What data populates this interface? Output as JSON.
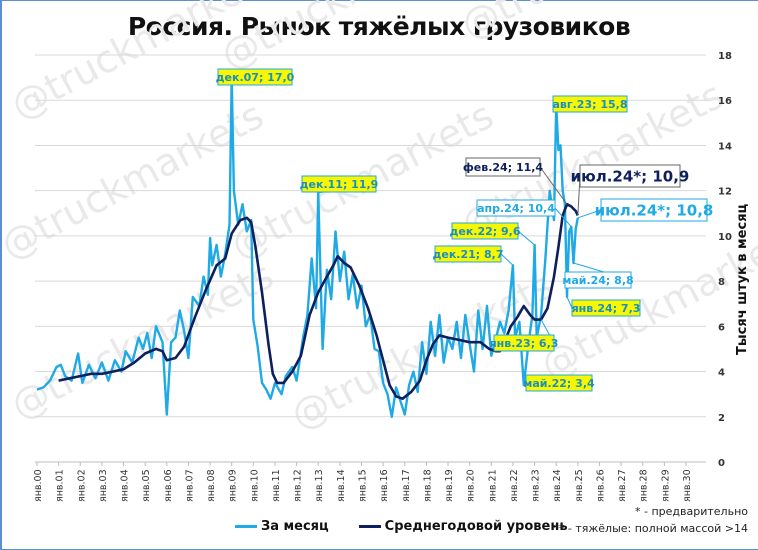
{
  "title": "Россия. Рынок тяжёлых грузовиков",
  "y_axis_label": "Тысяч штук в месяц",
  "legend": {
    "monthly": {
      "label": "За месяц",
      "color": "#1fa9e5"
    },
    "annual_avg": {
      "label": "Среднегодовой уровень",
      "color": "#0d1f5c"
    }
  },
  "notes": {
    "preliminary": "* - предварительно",
    "heavy_def": "** - тяжёлые: полной массой >14"
  },
  "watermark": "@truckmarkets",
  "chart_data": {
    "type": "line",
    "title": "Россия. Рынок тяжёлых грузовиков",
    "xlabel": "",
    "ylabel": "Тысяч штук в месяц",
    "ylim": [
      0,
      18
    ],
    "yticks": [
      0,
      2,
      4,
      6,
      8,
      10,
      12,
      14,
      16,
      18
    ],
    "y_axis_position": "right",
    "grid": "horizontal",
    "legend_position": "bottom",
    "x_tick_labels": [
      "янв.00",
      "янв.01",
      "янв.02",
      "янв.03",
      "янв.04",
      "янв.05",
      "янв.06",
      "янв.07",
      "янв.08",
      "янв.09",
      "янв.10",
      "янв.11",
      "янв.12",
      "янв.13",
      "янв.14",
      "янв.15",
      "янв.16",
      "янв.17",
      "янв.18",
      "янв.19",
      "янв.20",
      "янв.21",
      "янв.22",
      "янв.23",
      "янв.24",
      "янв.25",
      "янв.26",
      "янв.27",
      "янв.28",
      "янв.29",
      "янв.30"
    ],
    "x_year_range": [
      2000,
      2030
    ],
    "series": [
      {
        "name": "За месяц",
        "color": "#1fa9e5",
        "points": [
          [
            2000.0,
            3.2
          ],
          [
            2000.3,
            3.3
          ],
          [
            2000.6,
            3.6
          ],
          [
            2000.9,
            4.2
          ],
          [
            2001.1,
            4.3
          ],
          [
            2001.3,
            3.8
          ],
          [
            2001.6,
            3.6
          ],
          [
            2001.9,
            4.8
          ],
          [
            2002.1,
            3.5
          ],
          [
            2002.4,
            4.3
          ],
          [
            2002.7,
            3.7
          ],
          [
            2003.0,
            4.4
          ],
          [
            2003.3,
            3.6
          ],
          [
            2003.6,
            4.5
          ],
          [
            2003.9,
            4.0
          ],
          [
            2004.1,
            4.9
          ],
          [
            2004.4,
            4.4
          ],
          [
            2004.7,
            5.5
          ],
          [
            2004.9,
            5.0
          ],
          [
            2005.1,
            5.7
          ],
          [
            2005.3,
            4.6
          ],
          [
            2005.5,
            6.0
          ],
          [
            2005.8,
            5.3
          ],
          [
            2006.0,
            2.1
          ],
          [
            2006.2,
            5.3
          ],
          [
            2006.4,
            5.5
          ],
          [
            2006.6,
            6.7
          ],
          [
            2006.8,
            5.8
          ],
          [
            2007.0,
            4.6
          ],
          [
            2007.2,
            7.3
          ],
          [
            2007.5,
            6.9
          ],
          [
            2007.7,
            8.2
          ],
          [
            2007.9,
            7.4
          ],
          [
            2008.0,
            9.9
          ],
          [
            2008.1,
            8.7
          ],
          [
            2008.3,
            9.6
          ],
          [
            2008.5,
            8.2
          ],
          [
            2008.7,
            9.2
          ],
          [
            2008.9,
            10.5
          ],
          [
            2009.0,
            17.0
          ],
          [
            2009.1,
            12.0
          ],
          [
            2009.3,
            10.5
          ],
          [
            2009.5,
            11.4
          ],
          [
            2009.7,
            10.2
          ],
          [
            2009.9,
            10.7
          ],
          [
            2010.0,
            6.3
          ],
          [
            2010.2,
            5.1
          ],
          [
            2010.4,
            3.5
          ],
          [
            2010.6,
            3.2
          ],
          [
            2010.8,
            2.8
          ],
          [
            2011.0,
            3.5
          ],
          [
            2011.3,
            3.0
          ],
          [
            2011.5,
            3.8
          ],
          [
            2011.8,
            4.2
          ],
          [
            2012.0,
            3.6
          ],
          [
            2012.3,
            5.5
          ],
          [
            2012.5,
            6.5
          ],
          [
            2012.7,
            9.0
          ],
          [
            2012.9,
            6.8
          ],
          [
            2013.0,
            11.9
          ],
          [
            2013.2,
            5.0
          ],
          [
            2013.4,
            8.5
          ],
          [
            2013.6,
            7.2
          ],
          [
            2013.8,
            10.2
          ],
          [
            2014.0,
            8.0
          ],
          [
            2014.2,
            9.3
          ],
          [
            2014.4,
            7.2
          ],
          [
            2014.6,
            8.3
          ],
          [
            2014.8,
            6.8
          ],
          [
            2015.0,
            7.8
          ],
          [
            2015.2,
            6.0
          ],
          [
            2015.4,
            6.5
          ],
          [
            2015.6,
            5.0
          ],
          [
            2015.8,
            4.9
          ],
          [
            2016.0,
            3.5
          ],
          [
            2016.2,
            3.0
          ],
          [
            2016.4,
            2.0
          ],
          [
            2016.6,
            3.3
          ],
          [
            2016.8,
            2.7
          ],
          [
            2017.0,
            2.1
          ],
          [
            2017.2,
            3.4
          ],
          [
            2017.4,
            4.0
          ],
          [
            2017.6,
            3.1
          ],
          [
            2017.8,
            5.3
          ],
          [
            2018.0,
            3.9
          ],
          [
            2018.2,
            6.2
          ],
          [
            2018.4,
            4.7
          ],
          [
            2018.6,
            6.5
          ],
          [
            2018.8,
            4.4
          ],
          [
            2019.0,
            5.5
          ],
          [
            2019.2,
            5.0
          ],
          [
            2019.4,
            6.2
          ],
          [
            2019.6,
            4.6
          ],
          [
            2019.8,
            6.5
          ],
          [
            2020.0,
            5.2
          ],
          [
            2020.2,
            4.0
          ],
          [
            2020.4,
            6.7
          ],
          [
            2020.6,
            5.0
          ],
          [
            2020.8,
            6.9
          ],
          [
            2021.0,
            4.7
          ],
          [
            2021.2,
            5.4
          ],
          [
            2021.4,
            6.2
          ],
          [
            2021.6,
            5.7
          ],
          [
            2021.8,
            6.7
          ],
          [
            2022.0,
            8.7
          ],
          [
            2022.1,
            5.5
          ],
          [
            2022.3,
            6.2
          ],
          [
            2022.5,
            3.4
          ],
          [
            2022.7,
            5.1
          ],
          [
            2022.9,
            6.5
          ],
          [
            2023.0,
            9.6
          ],
          [
            2023.1,
            5.5
          ],
          [
            2023.3,
            6.5
          ],
          [
            2023.5,
            9.0
          ],
          [
            2023.7,
            12.0
          ],
          [
            2023.9,
            10.7
          ],
          [
            2024.0,
            15.8
          ],
          [
            2024.1,
            13.8
          ],
          [
            2024.2,
            14.0
          ],
          [
            2024.3,
            12.0
          ],
          [
            2024.4,
            11.4
          ],
          [
            2024.5,
            7.3
          ],
          [
            2024.6,
            10.2
          ],
          [
            2024.7,
            10.4
          ],
          [
            2024.8,
            8.8
          ],
          [
            2024.9,
            10.3
          ],
          [
            2025.0,
            10.8
          ]
        ],
        "annotations": [
          {
            "label": "дек.07; 17,0",
            "x": 2009.0,
            "y": 17.0
          },
          {
            "label": "дек.11; 11,9",
            "x": 2013.0,
            "y": 11.9
          },
          {
            "label": "авг.23; 15,8",
            "x": 2024.0,
            "y": 15.8
          },
          {
            "label": "дек.21; 8,7",
            "x": 2022.0,
            "y": 8.7
          },
          {
            "label": "дек.22; 9,6",
            "x": 2023.0,
            "y": 9.6
          },
          {
            "label": "май.22; 3,4",
            "x": 2022.5,
            "y": 3.4
          },
          {
            "label": "янв.24; 7,3",
            "x": 2024.5,
            "y": 7.3
          },
          {
            "label": "апр.24; 10,4",
            "x": 2024.7,
            "y": 10.4
          },
          {
            "label": "май.24; 8,8",
            "x": 2024.8,
            "y": 8.8
          },
          {
            "label": "июл.24*; 10,8",
            "x": 2025.0,
            "y": 10.8
          }
        ]
      },
      {
        "name": "Среднегодовой уровень",
        "color": "#0d1f5c",
        "points": [
          [
            2001.0,
            3.6
          ],
          [
            2001.5,
            3.7
          ],
          [
            2002.0,
            3.8
          ],
          [
            2002.5,
            3.9
          ],
          [
            2003.0,
            3.9
          ],
          [
            2003.5,
            4.0
          ],
          [
            2004.0,
            4.1
          ],
          [
            2004.5,
            4.4
          ],
          [
            2005.0,
            4.8
          ],
          [
            2005.5,
            5.0
          ],
          [
            2005.8,
            4.9
          ],
          [
            2006.0,
            4.5
          ],
          [
            2006.4,
            4.6
          ],
          [
            2006.8,
            5.1
          ],
          [
            2007.3,
            6.4
          ],
          [
            2007.8,
            7.6
          ],
          [
            2008.3,
            8.7
          ],
          [
            2008.7,
            9.0
          ],
          [
            2009.0,
            10.1
          ],
          [
            2009.4,
            10.7
          ],
          [
            2009.7,
            10.8
          ],
          [
            2009.9,
            10.6
          ],
          [
            2010.1,
            9.5
          ],
          [
            2010.4,
            7.5
          ],
          [
            2010.7,
            5.2
          ],
          [
            2010.9,
            3.9
          ],
          [
            2011.1,
            3.5
          ],
          [
            2011.4,
            3.5
          ],
          [
            2011.8,
            4.0
          ],
          [
            2012.2,
            4.7
          ],
          [
            2012.6,
            6.5
          ],
          [
            2013.0,
            7.5
          ],
          [
            2013.4,
            8.2
          ],
          [
            2013.7,
            8.7
          ],
          [
            2013.9,
            9.1
          ],
          [
            2014.2,
            8.8
          ],
          [
            2014.5,
            8.6
          ],
          [
            2014.9,
            7.8
          ],
          [
            2015.3,
            6.8
          ],
          [
            2015.7,
            5.6
          ],
          [
            2016.0,
            4.5
          ],
          [
            2016.3,
            3.4
          ],
          [
            2016.6,
            2.9
          ],
          [
            2016.9,
            2.8
          ],
          [
            2017.3,
            3.1
          ],
          [
            2017.7,
            3.6
          ],
          [
            2018.0,
            4.5
          ],
          [
            2018.3,
            5.2
          ],
          [
            2018.6,
            5.6
          ],
          [
            2019.0,
            5.5
          ],
          [
            2019.5,
            5.4
          ],
          [
            2020.0,
            5.3
          ],
          [
            2020.5,
            5.3
          ],
          [
            2020.9,
            5.0
          ],
          [
            2021.2,
            4.9
          ],
          [
            2021.4,
            4.9
          ],
          [
            2021.6,
            5.3
          ],
          [
            2021.9,
            6.0
          ],
          [
            2022.2,
            6.4
          ],
          [
            2022.5,
            6.9
          ],
          [
            2022.8,
            6.5
          ],
          [
            2023.0,
            6.3
          ],
          [
            2023.3,
            6.3
          ],
          [
            2023.6,
            6.8
          ],
          [
            2023.9,
            8.2
          ],
          [
            2024.1,
            9.5
          ],
          [
            2024.3,
            10.9
          ],
          [
            2024.5,
            11.4
          ],
          [
            2024.7,
            11.3
          ],
          [
            2024.9,
            11.1
          ],
          [
            2025.0,
            10.9
          ]
        ],
        "annotations": [
          {
            "label": "фев.24; 11,4",
            "x": 2024.5,
            "y": 11.4
          },
          {
            "label": "июл.24*; 10,9",
            "x": 2025.0,
            "y": 10.9
          }
        ]
      }
    ]
  }
}
